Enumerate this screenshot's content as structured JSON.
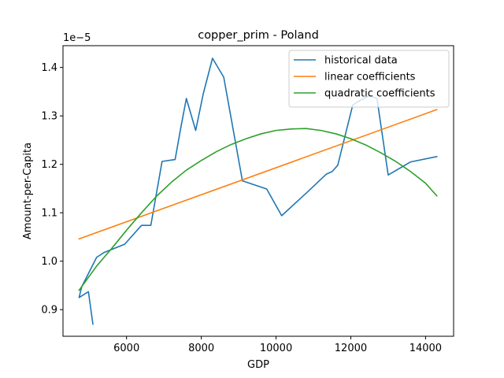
{
  "chart_data": {
    "type": "line",
    "title": "copper_prim - Poland",
    "xlabel": "GDP",
    "ylabel": "Amount-per-Capita",
    "y_offset_label": "1e−5",
    "xlim": [
      4300,
      14750
    ],
    "ylim": [
      0.845,
      1.445
    ],
    "x_ticks": [
      6000,
      8000,
      10000,
      12000,
      14000
    ],
    "x_tick_labels": [
      "6000",
      "8000",
      "10000",
      "12000",
      "14000"
    ],
    "y_ticks": [
      0.9,
      1.0,
      1.1,
      1.2,
      1.3,
      1.4
    ],
    "y_tick_labels": [
      "0.9",
      "1.0",
      "1.1",
      "1.2",
      "1.3",
      "1.4"
    ],
    "legend_position": "top-right",
    "grid": false,
    "series": [
      {
        "name": "historical data",
        "color": "#1f77b4",
        "points": [
          [
            5100,
            0.87
          ],
          [
            4980,
            0.937
          ],
          [
            4730,
            0.925
          ],
          [
            4800,
            0.947
          ],
          [
            5200,
            1.008
          ],
          [
            5400,
            1.018
          ],
          [
            5950,
            1.035
          ],
          [
            6400,
            1.074
          ],
          [
            6650,
            1.074
          ],
          [
            6950,
            1.206
          ],
          [
            7300,
            1.21
          ],
          [
            7450,
            1.275
          ],
          [
            7600,
            1.336
          ],
          [
            7850,
            1.27
          ],
          [
            8050,
            1.345
          ],
          [
            8300,
            1.419
          ],
          [
            8600,
            1.38
          ],
          [
            9100,
            1.166
          ],
          [
            9750,
            1.149
          ],
          [
            10150,
            1.094
          ],
          [
            10800,
            1.14
          ],
          [
            11350,
            1.18
          ],
          [
            11500,
            1.185
          ],
          [
            11650,
            1.198
          ],
          [
            12050,
            1.322
          ],
          [
            12200,
            1.33
          ],
          [
            12500,
            1.342
          ],
          [
            12700,
            1.336
          ],
          [
            13000,
            1.178
          ],
          [
            13600,
            1.205
          ],
          [
            14300,
            1.216
          ]
        ]
      },
      {
        "name": "linear coefficients",
        "color": "#ff7f0e",
        "points": [
          [
            4730,
            1.046
          ],
          [
            14300,
            1.313
          ]
        ]
      },
      {
        "name": "quadratic coefficients",
        "color": "#2ca02c",
        "points": [
          [
            4730,
            0.94
          ],
          [
            5200,
            0.99
          ],
          [
            5600,
            1.026
          ],
          [
            6000,
            1.064
          ],
          [
            6400,
            1.1
          ],
          [
            6800,
            1.134
          ],
          [
            7200,
            1.163
          ],
          [
            7600,
            1.188
          ],
          [
            8000,
            1.208
          ],
          [
            8400,
            1.226
          ],
          [
            8800,
            1.241
          ],
          [
            9200,
            1.253
          ],
          [
            9600,
            1.263
          ],
          [
            10000,
            1.27
          ],
          [
            10400,
            1.273
          ],
          [
            10800,
            1.274
          ],
          [
            11200,
            1.27
          ],
          [
            11600,
            1.263
          ],
          [
            12000,
            1.253
          ],
          [
            12400,
            1.24
          ],
          [
            12800,
            1.224
          ],
          [
            13200,
            1.206
          ],
          [
            13600,
            1.185
          ],
          [
            14000,
            1.161
          ],
          [
            14300,
            1.135
          ]
        ]
      }
    ]
  }
}
